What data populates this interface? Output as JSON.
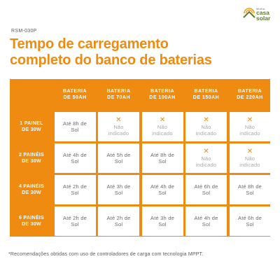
{
  "logo": {
    "small": "Minha",
    "line1": "casa",
    "line2": "solar"
  },
  "code": "RSM-030P",
  "title_line1": "Tempo de carregamento",
  "title_line2": "completo do banco de baterias",
  "columns": [
    [
      "BATERIA",
      "DE 50AH"
    ],
    [
      "BATERIA",
      "DE 70AH"
    ],
    [
      "BATERIA",
      "DE 100AH"
    ],
    [
      "BATERIA",
      "DE 150AH"
    ],
    [
      "BATERIA",
      "DE 220AH"
    ]
  ],
  "rows": [
    {
      "label": [
        "1 PAINEL",
        "DE 30W"
      ],
      "cells": [
        [
          "Até 8h de",
          "Sol"
        ],
        null,
        null,
        null,
        null
      ]
    },
    {
      "label": [
        "2 PAINÉIS",
        "DE 30W"
      ],
      "cells": [
        [
          "Até 4h de",
          "Sol"
        ],
        [
          "Até 5h de",
          "Sol"
        ],
        [
          "Até 8h de",
          "Sol"
        ],
        null,
        null
      ]
    },
    {
      "label": [
        "4 PAINÉIS",
        "DE 30W"
      ],
      "cells": [
        [
          "Até 2h de",
          "Sol"
        ],
        [
          "Até 3h de",
          "Sol"
        ],
        [
          "Até 4h de",
          "Sol"
        ],
        [
          "Até 6h de",
          "Sol"
        ],
        [
          "Até 8h de",
          "Sol"
        ]
      ]
    },
    {
      "label": [
        "6 PAINÉIS",
        "DE 30W"
      ],
      "cells": [
        [
          "Até 2h de",
          "Sol"
        ],
        [
          "Até 2h de",
          "Sol"
        ],
        [
          "Até 3h de",
          "Sol"
        ],
        [
          "Até 4h de",
          "Sol"
        ],
        [
          "Até 6h de",
          "Sol"
        ]
      ]
    }
  ],
  "na": {
    "mark": "✕",
    "line1": "Não",
    "line2": "indicado"
  },
  "footnote": "*Recomendações obtidas com uso de controladores de carga com tecnologia MPPT.",
  "colors": {
    "accent": "#ee8b10",
    "brand_green": "#5e7e2e"
  },
  "icons": {
    "logo": "sun-over-house-logo-icon",
    "not_recommended": "x-mark-icon"
  }
}
